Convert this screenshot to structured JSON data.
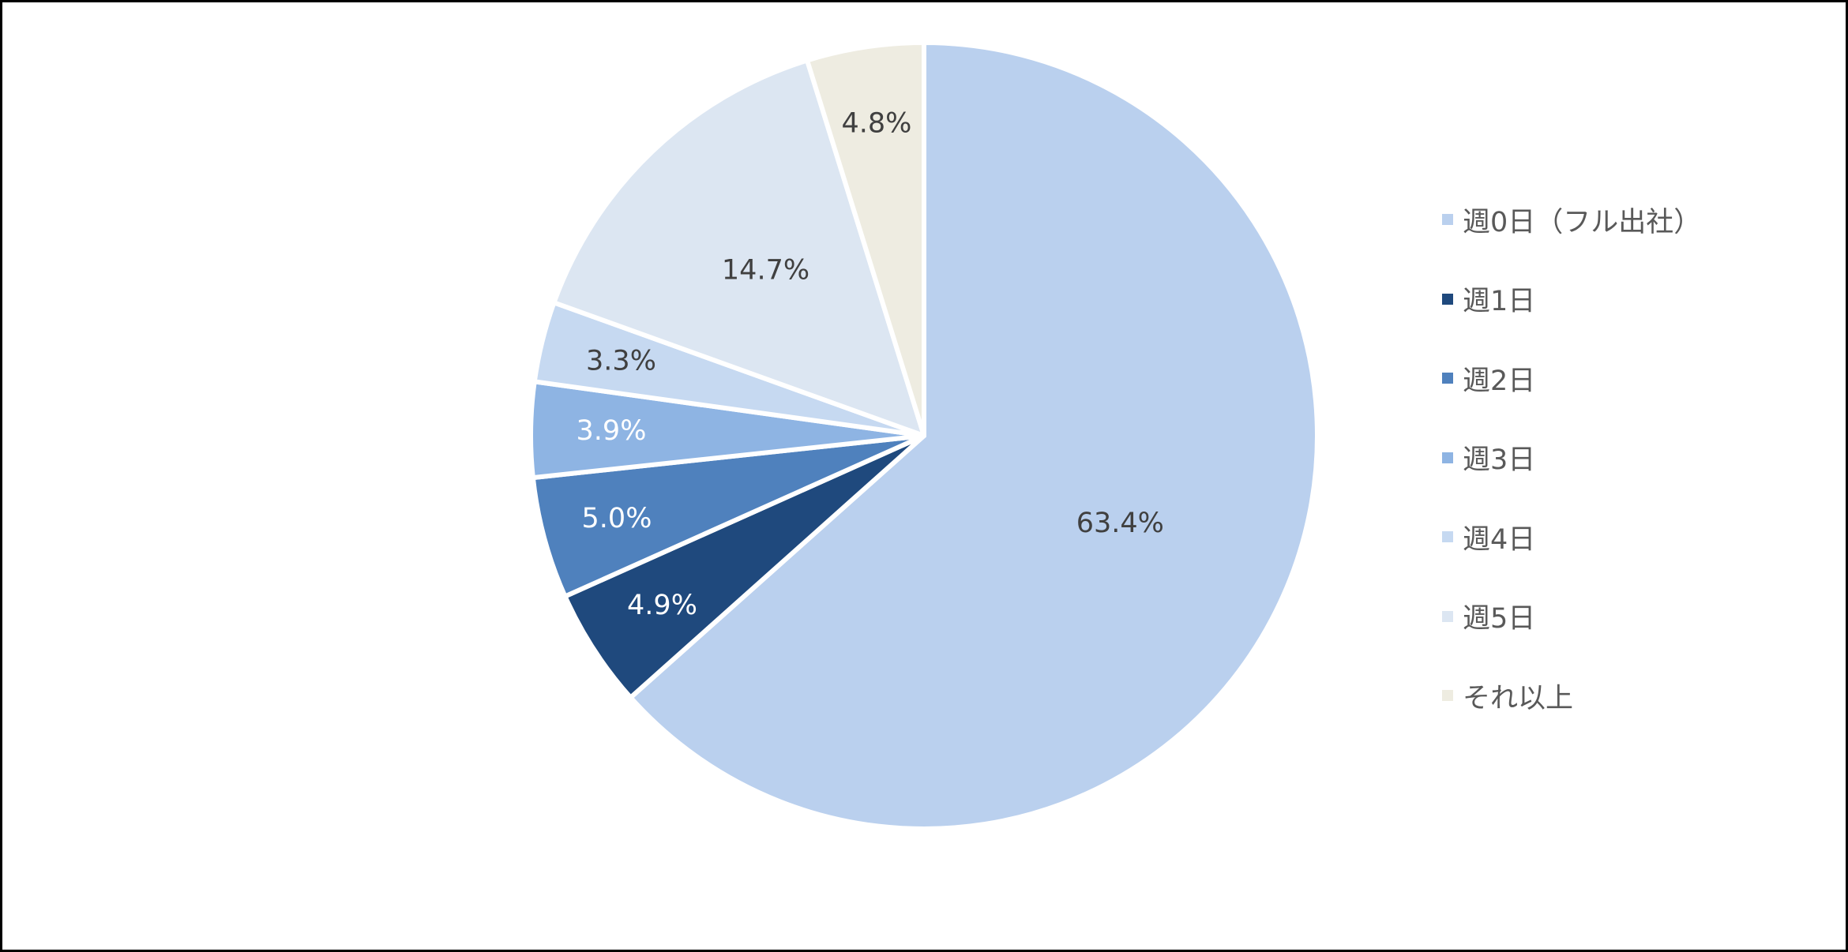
{
  "chart_data": {
    "type": "pie",
    "start": "12 o'clock",
    "direction": "clockwise",
    "legend_position": "right",
    "slices": [
      {
        "label": "週0日（フル出社）",
        "value": 63.4,
        "display": "63.4%",
        "color": "#BAD0EE",
        "label_color": "#404040"
      },
      {
        "label": "週1日",
        "value": 4.9,
        "display": "4.9%",
        "color": "#1F497D",
        "label_color": "#FFFFFF"
      },
      {
        "label": "週2日",
        "value": 5.0,
        "display": "5.0%",
        "color": "#4F81BD",
        "label_color": "#FFFFFF"
      },
      {
        "label": "週3日",
        "value": 3.9,
        "display": "3.9%",
        "color": "#8EB4E3",
        "label_color": "#FFFFFF"
      },
      {
        "label": "週4日",
        "value": 3.3,
        "display": "3.3%",
        "color": "#C6D9F1",
        "label_color": "#404040"
      },
      {
        "label": "週5日",
        "value": 14.7,
        "display": "14.7%",
        "color": "#DCE6F2",
        "label_color": "#404040"
      },
      {
        "label": "それ以上",
        "value": 4.8,
        "display": "4.8%",
        "color": "#EEECE1",
        "label_color": "#404040"
      }
    ]
  }
}
